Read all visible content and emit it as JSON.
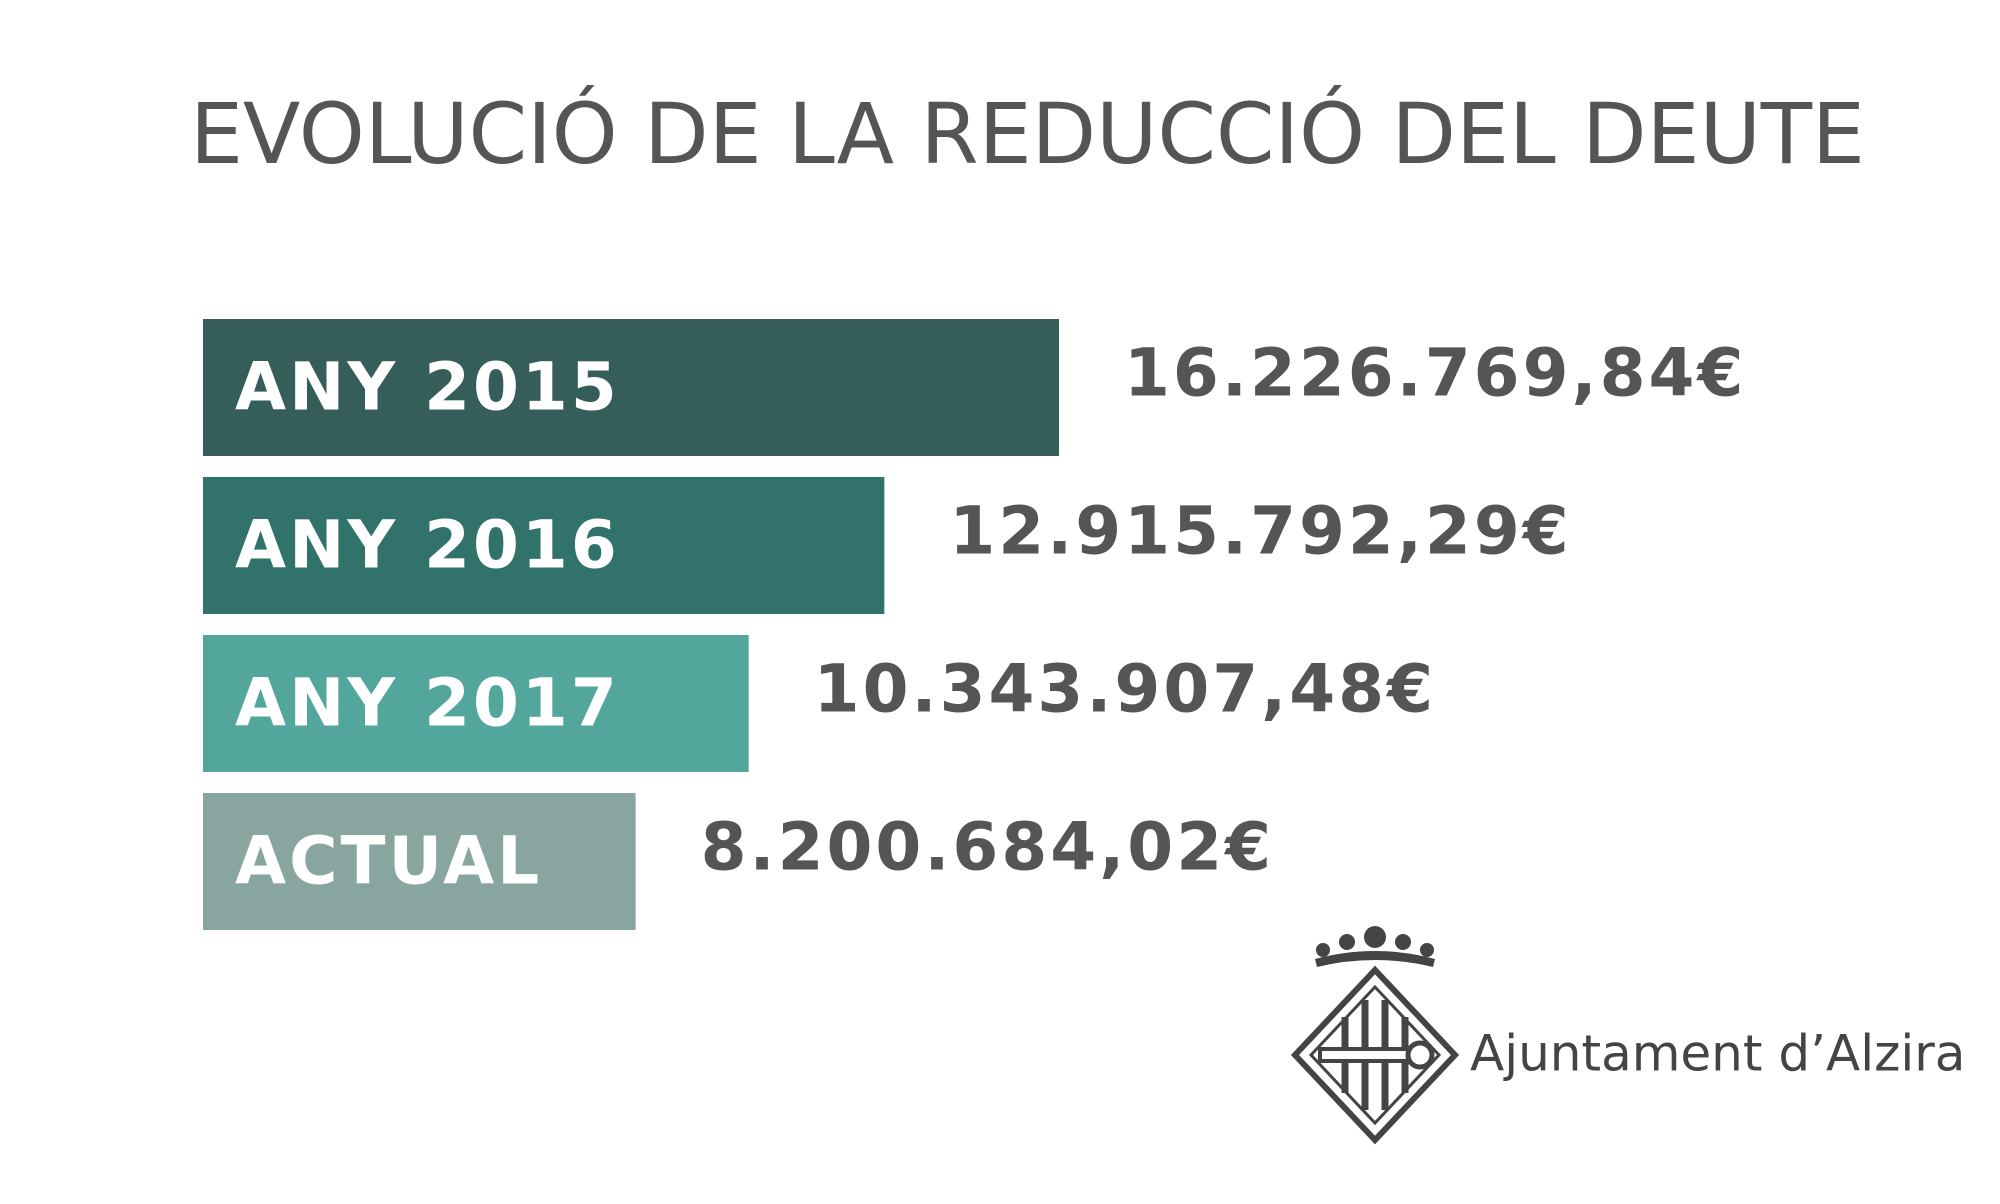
{
  "chart_data": {
    "type": "bar",
    "orientation": "horizontal",
    "title": "EVOLUCIÓ  DE LA REDUCCIÓ DEL DEUTE",
    "categories": [
      "ANY 2015",
      "ANY 2016",
      "ANY 2017",
      "ACTUAL"
    ],
    "values": [
      16226769.84,
      12915792.29,
      10343907.48,
      8200684.02
    ],
    "value_labels": [
      "16.226.769,84€",
      "12.915.792,29€",
      "10.343.907,48€",
      "8.200.684,02€"
    ],
    "colors": [
      "#355d59",
      "#31726a",
      "#53a69c",
      "#89a59f"
    ]
  },
  "logo": {
    "text": "Ajuntament d’Alzira"
  }
}
